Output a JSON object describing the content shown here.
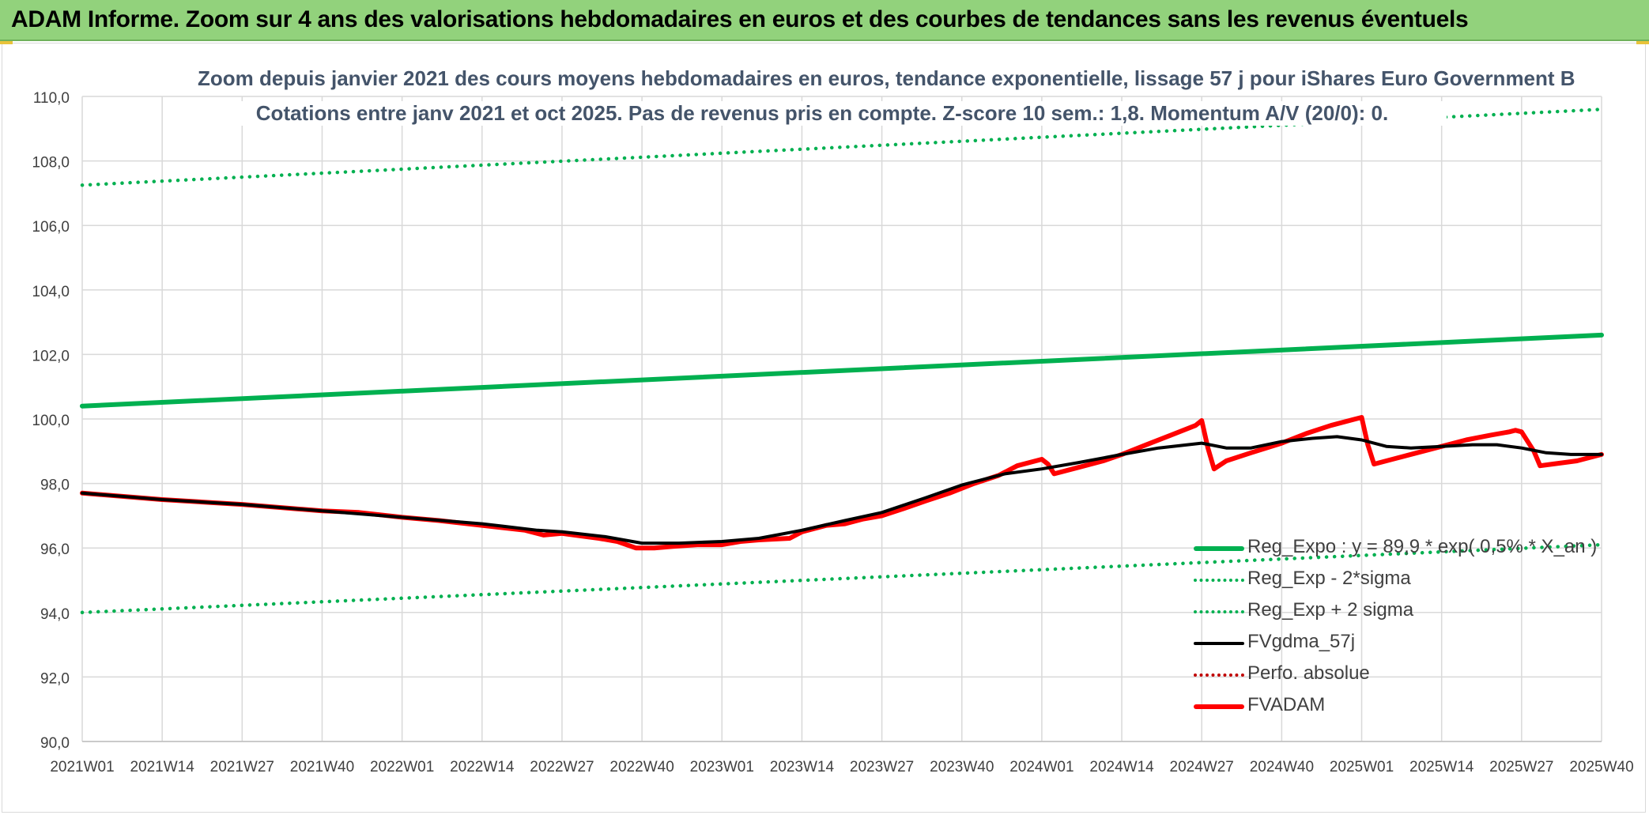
{
  "banner": {
    "title": "ADAM Informe. Zoom sur 4 ans des valorisations hebdomadaires en euros et des courbes de tendances sans les revenus éventuels"
  },
  "colors": {
    "banner_bg": "#92d27c",
    "regression": "#00b050",
    "smoothing": "#000000",
    "price": "#ff0000",
    "perf": "#c00000",
    "grid": "#d9d9d9",
    "axis_text": "#44546a"
  },
  "chart_data": {
    "type": "line",
    "title": "Zoom depuis janvier 2021 des cours moyens hebdomadaires en euros, tendance exponentielle, lissage 57 j pour iShares Euro Government B",
    "subtitle": "Cotations entre janv 2021 et oct 2025. Pas de revenus pris en compte. Z-score 10 sem.: 1,8. Momentum A/V (20/0): 0.",
    "xlabel": "",
    "ylabel": "",
    "ylim": [
      90,
      110
    ],
    "ytick_step": 2,
    "yticks": [
      "110,0",
      "108,0",
      "106,0",
      "104,0",
      "102,0",
      "100,0",
      "98,0",
      "96,0",
      "94,0",
      "92,0",
      "90,0"
    ],
    "x_week_range": [
      0,
      247
    ],
    "xticks": [
      {
        "label": "2021W01",
        "week": 0
      },
      {
        "label": "2021W14",
        "week": 13
      },
      {
        "label": "2021W27",
        "week": 26
      },
      {
        "label": "2021W40",
        "week": 39
      },
      {
        "label": "2022W01",
        "week": 52
      },
      {
        "label": "2022W14",
        "week": 65
      },
      {
        "label": "2022W27",
        "week": 78
      },
      {
        "label": "2022W40",
        "week": 91
      },
      {
        "label": "2023W01",
        "week": 104
      },
      {
        "label": "2023W14",
        "week": 117
      },
      {
        "label": "2023W27",
        "week": 130
      },
      {
        "label": "2023W40",
        "week": 143
      },
      {
        "label": "2024W01",
        "week": 156
      },
      {
        "label": "2024W14",
        "week": 169
      },
      {
        "label": "2024W27",
        "week": 182
      },
      {
        "label": "2024W40",
        "week": 195
      },
      {
        "label": "2025W01",
        "week": 208
      },
      {
        "label": "2025W14",
        "week": 221
      },
      {
        "label": "2025W27",
        "week": 234
      },
      {
        "label": "2025W40",
        "week": 247
      }
    ],
    "grid": true,
    "legend_position": "bottom-right",
    "series": [
      {
        "name": "Reg_Expo : y = 89,9 * exp( 0,5% * X_an )",
        "style": "solid-thick",
        "color": "#00b050",
        "x": [
          0,
          247
        ],
        "y": [
          100.4,
          102.6
        ]
      },
      {
        "name": "Reg_Exp - 2*sigma",
        "style": "dotted",
        "color": "#00b050",
        "x": [
          0,
          247
        ],
        "y": [
          94.0,
          96.1
        ]
      },
      {
        "name": "Reg_Exp + 2 sigma",
        "style": "dotted",
        "color": "#00b050",
        "x": [
          0,
          247
        ],
        "y": [
          107.25,
          109.6
        ]
      },
      {
        "name": "FVgdma_57j",
        "style": "solid",
        "color": "#000000",
        "x": [
          0,
          13,
          26,
          39,
          52,
          65,
          74,
          78,
          85,
          91,
          97,
          104,
          110,
          117,
          124,
          130,
          137,
          143,
          150,
          156,
          162,
          169,
          175,
          182,
          186,
          190,
          195,
          200,
          204,
          208,
          212,
          216,
          221,
          226,
          230,
          234,
          238,
          242,
          247
        ],
        "y": [
          97.7,
          97.5,
          97.35,
          97.15,
          96.95,
          96.75,
          96.55,
          96.5,
          96.35,
          96.15,
          96.15,
          96.2,
          96.3,
          96.55,
          96.85,
          97.1,
          97.55,
          97.95,
          98.3,
          98.45,
          98.65,
          98.9,
          99.1,
          99.25,
          99.1,
          99.1,
          99.3,
          99.4,
          99.45,
          99.35,
          99.15,
          99.1,
          99.15,
          99.2,
          99.2,
          99.1,
          98.95,
          98.9,
          98.9
        ]
      },
      {
        "name": "Perfo. absolue",
        "style": "dotted",
        "color": "#c00000",
        "x": [],
        "y": []
      },
      {
        "name": "FVADAM",
        "style": "solid-thick",
        "color": "#ff0000",
        "x": [
          0,
          13,
          26,
          39,
          45,
          52,
          58,
          65,
          72,
          75,
          78,
          80,
          84,
          87,
          90,
          91,
          93,
          96,
          100,
          104,
          107,
          110,
          115,
          117,
          121,
          124,
          127,
          130,
          134,
          137,
          141,
          145,
          149,
          152,
          156,
          157,
          158,
          162,
          166,
          169,
          173,
          177,
          181,
          182,
          183,
          184,
          186,
          190,
          195,
          199,
          203,
          207,
          208,
          209,
          210,
          213,
          217,
          221,
          225,
          229,
          232,
          233,
          234,
          236,
          237,
          239,
          243,
          247
        ],
        "y": [
          97.7,
          97.5,
          97.35,
          97.15,
          97.1,
          96.95,
          96.85,
          96.7,
          96.55,
          96.4,
          96.45,
          96.4,
          96.3,
          96.2,
          96.0,
          96.0,
          96.0,
          96.05,
          96.1,
          96.1,
          96.2,
          96.25,
          96.3,
          96.5,
          96.7,
          96.75,
          96.9,
          97.0,
          97.25,
          97.45,
          97.7,
          98.0,
          98.25,
          98.55,
          98.75,
          98.6,
          98.3,
          98.5,
          98.7,
          98.9,
          99.2,
          99.5,
          99.8,
          99.95,
          99.1,
          98.45,
          98.7,
          98.95,
          99.25,
          99.55,
          99.8,
          100.0,
          100.05,
          99.2,
          98.6,
          98.75,
          98.95,
          99.15,
          99.35,
          99.5,
          99.6,
          99.65,
          99.6,
          99.0,
          98.55,
          98.6,
          98.7,
          98.9
        ]
      }
    ]
  }
}
